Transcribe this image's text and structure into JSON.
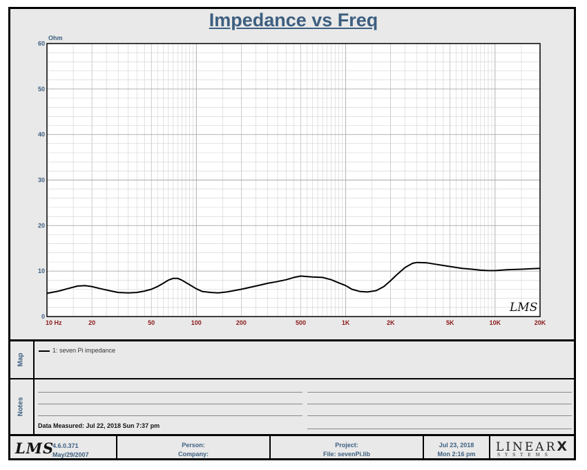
{
  "title": "Impedance vs Freq",
  "chart_data": {
    "type": "line",
    "title": "Impedance vs Freq",
    "ylabel": "Ohm",
    "xlabel": "",
    "x_scale": "log",
    "xlim": [
      10,
      20000
    ],
    "ylim": [
      0,
      60
    ],
    "grid": true,
    "y_ticks": [
      0,
      10,
      20,
      30,
      40,
      50,
      60
    ],
    "x_ticks": [
      {
        "value": 10,
        "label": "10  Hz"
      },
      {
        "value": 20,
        "label": "20"
      },
      {
        "value": 50,
        "label": "50"
      },
      {
        "value": 100,
        "label": "100"
      },
      {
        "value": 200,
        "label": "200"
      },
      {
        "value": 500,
        "label": "500"
      },
      {
        "value": 1000,
        "label": "1K"
      },
      {
        "value": 2000,
        "label": "2K"
      },
      {
        "value": 5000,
        "label": "5K"
      },
      {
        "value": 10000,
        "label": "10K"
      },
      {
        "value": 20000,
        "label": "20K"
      }
    ],
    "series": [
      {
        "name": "1: seven Pi impedance",
        "color": "#000000",
        "points": [
          [
            10,
            5.1
          ],
          [
            12,
            5.6
          ],
          [
            14,
            6.2
          ],
          [
            16,
            6.7
          ],
          [
            18,
            6.8
          ],
          [
            20,
            6.6
          ],
          [
            23,
            6.1
          ],
          [
            27,
            5.6
          ],
          [
            30,
            5.3
          ],
          [
            35,
            5.2
          ],
          [
            40,
            5.3
          ],
          [
            45,
            5.6
          ],
          [
            50,
            6.0
          ],
          [
            55,
            6.6
          ],
          [
            60,
            7.3
          ],
          [
            65,
            8.0
          ],
          [
            70,
            8.4
          ],
          [
            75,
            8.4
          ],
          [
            80,
            8.0
          ],
          [
            90,
            7.0
          ],
          [
            100,
            6.1
          ],
          [
            110,
            5.5
          ],
          [
            125,
            5.3
          ],
          [
            140,
            5.2
          ],
          [
            160,
            5.4
          ],
          [
            200,
            6.0
          ],
          [
            250,
            6.7
          ],
          [
            300,
            7.3
          ],
          [
            350,
            7.7
          ],
          [
            400,
            8.1
          ],
          [
            450,
            8.6
          ],
          [
            500,
            8.9
          ],
          [
            550,
            8.8
          ],
          [
            600,
            8.7
          ],
          [
            700,
            8.6
          ],
          [
            800,
            8.1
          ],
          [
            900,
            7.4
          ],
          [
            1000,
            6.8
          ],
          [
            1100,
            6.0
          ],
          [
            1250,
            5.5
          ],
          [
            1400,
            5.4
          ],
          [
            1600,
            5.7
          ],
          [
            1800,
            6.6
          ],
          [
            2000,
            7.9
          ],
          [
            2200,
            9.2
          ],
          [
            2500,
            10.8
          ],
          [
            2800,
            11.7
          ],
          [
            3000,
            11.9
          ],
          [
            3500,
            11.8
          ],
          [
            4000,
            11.5
          ],
          [
            5000,
            11.0
          ],
          [
            6000,
            10.6
          ],
          [
            7000,
            10.4
          ],
          [
            8000,
            10.2
          ],
          [
            9000,
            10.1
          ],
          [
            10000,
            10.1
          ],
          [
            12000,
            10.3
          ],
          [
            15000,
            10.4
          ],
          [
            20000,
            10.6
          ]
        ]
      }
    ],
    "annotation": "LMS"
  },
  "map": {
    "label": "Map",
    "legend": "1: seven Pi impedance"
  },
  "notes": {
    "label": "Notes",
    "data_measured": "Data Measured: Jul 22, 2018  Sun  7:37 pm"
  },
  "footer": {
    "logo": "LMS",
    "version": "4.6.0.371",
    "version_date": "May/29/2007",
    "person": "Person:",
    "company": "Company:",
    "project": "Project:",
    "file": "File: sevenPi.lib",
    "date": "Jul 23, 2018",
    "time": "Mon  2:16 pm",
    "brand": "LINEAR",
    "brand_x": "X",
    "brand_sub": "SYSTEMS"
  }
}
